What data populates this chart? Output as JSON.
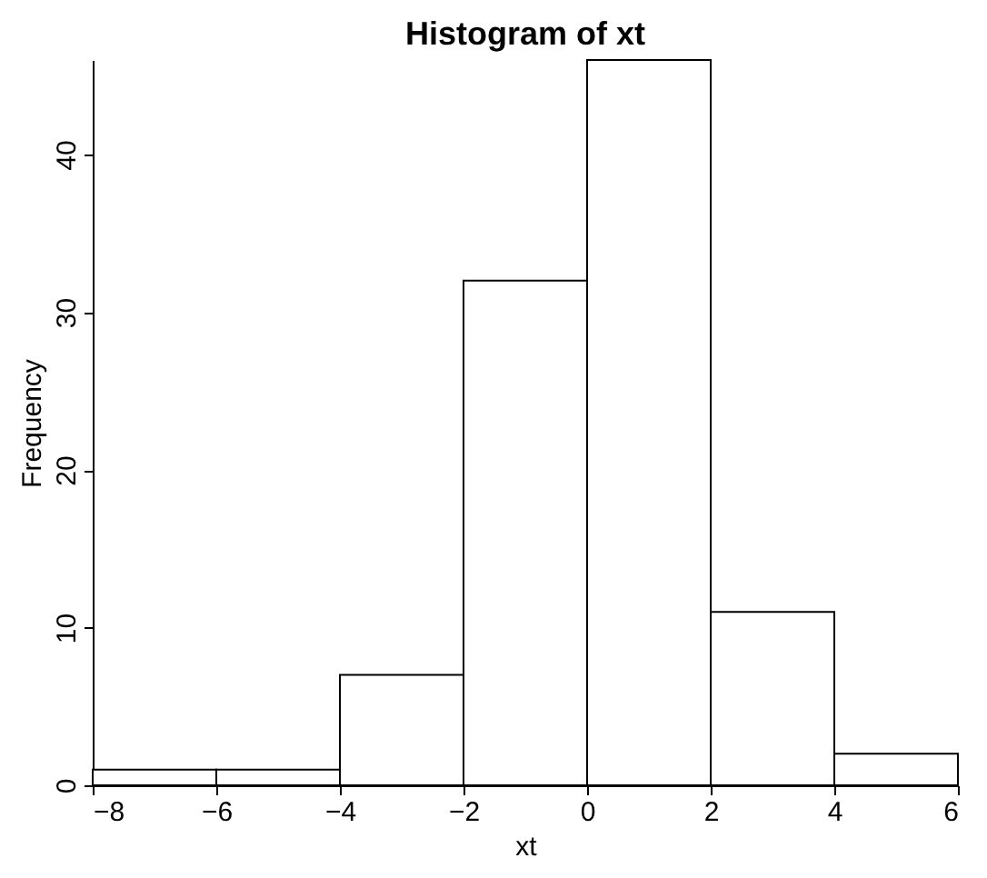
{
  "chart_data": {
    "type": "histogram",
    "title": "Histogram of xt",
    "xlabel": "xt",
    "ylabel": "Frequency",
    "bins": [
      -8,
      -6,
      -4,
      -2,
      0,
      2,
      4,
      6
    ],
    "values": [
      1,
      1,
      7,
      32,
      46,
      11,
      2
    ],
    "color": "#ffffff",
    "xlim": [
      -8,
      6
    ],
    "xticks": [
      -8,
      -6,
      -4,
      -2,
      0,
      2,
      4,
      6
    ],
    "ylim": [
      0,
      46
    ],
    "yticks": [
      0,
      10,
      20,
      30,
      40
    ],
    "grid": false
  }
}
